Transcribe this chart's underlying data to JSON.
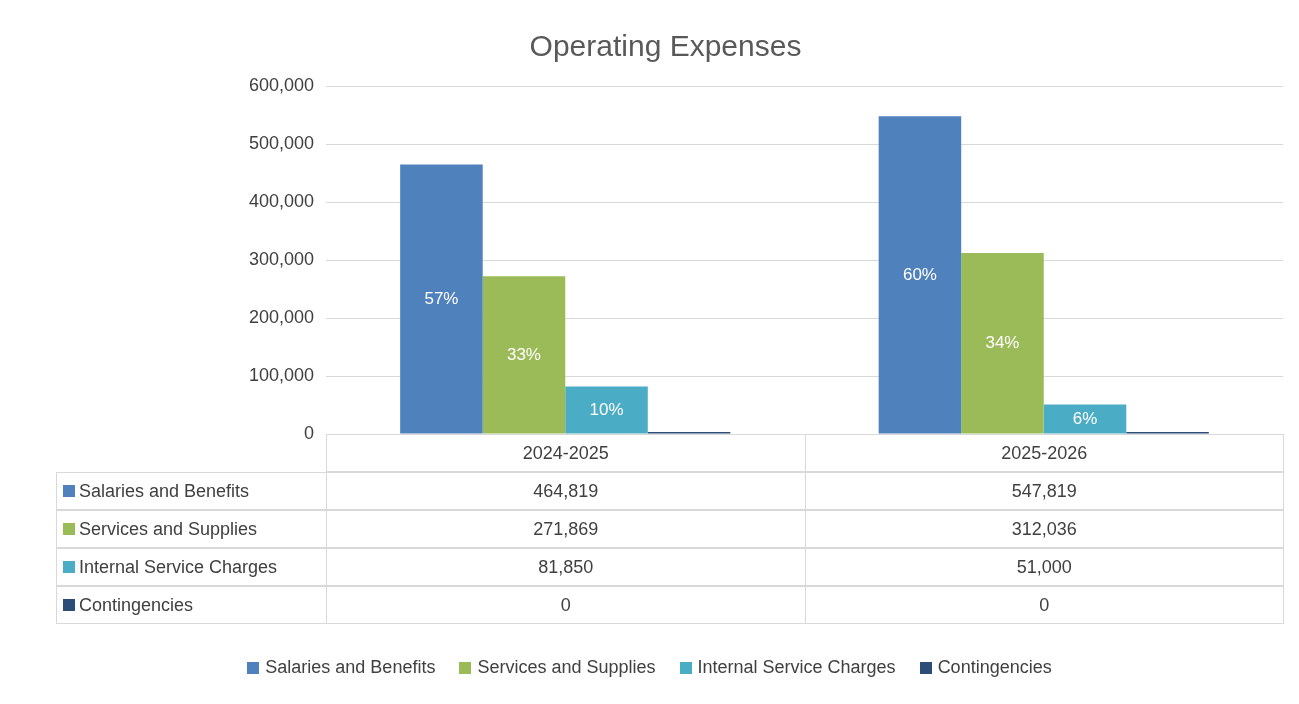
{
  "chart_data": {
    "type": "bar",
    "title": "Operating Expenses",
    "categories": [
      "2024-2025",
      "2025-2026"
    ],
    "series": [
      {
        "name": "Salaries and Benefits",
        "color": "#4f81bd",
        "values": [
          464819,
          547819
        ],
        "value_labels": [
          "464,819",
          "547,819"
        ]
      },
      {
        "name": "Services and Supplies",
        "color": "#9bbb59",
        "values": [
          271869,
          312036
        ],
        "value_labels": [
          "271,869",
          "312,036"
        ]
      },
      {
        "name": "Internal Service Charges",
        "color": "#4bacc6",
        "values": [
          81850,
          51000
        ],
        "value_labels": [
          "81,850",
          "51,000"
        ]
      },
      {
        "name": "Contingencies",
        "color": "#2c4d75",
        "values": [
          0,
          0
        ],
        "value_labels": [
          "0",
          "0"
        ]
      }
    ],
    "annotations": [
      "57%",
      "60%",
      "33%",
      "34%",
      "10%",
      "6%"
    ],
    "data_labels": true,
    "ylim": [
      0,
      600000
    ],
    "yticks": [
      0,
      {
        "value": 100000,
        "label": "100,000"
      },
      {
        "value": 200000,
        "label": "200,000"
      },
      {
        "value": 300000,
        "label": "300,000"
      },
      {
        "value": 400000,
        "label": "400,000"
      },
      {
        "value": 500000,
        "label": "500,000"
      },
      {
        "value": 600000,
        "label": "600,000"
      }
    ],
    "grid": "y",
    "legend": "bottom"
  }
}
